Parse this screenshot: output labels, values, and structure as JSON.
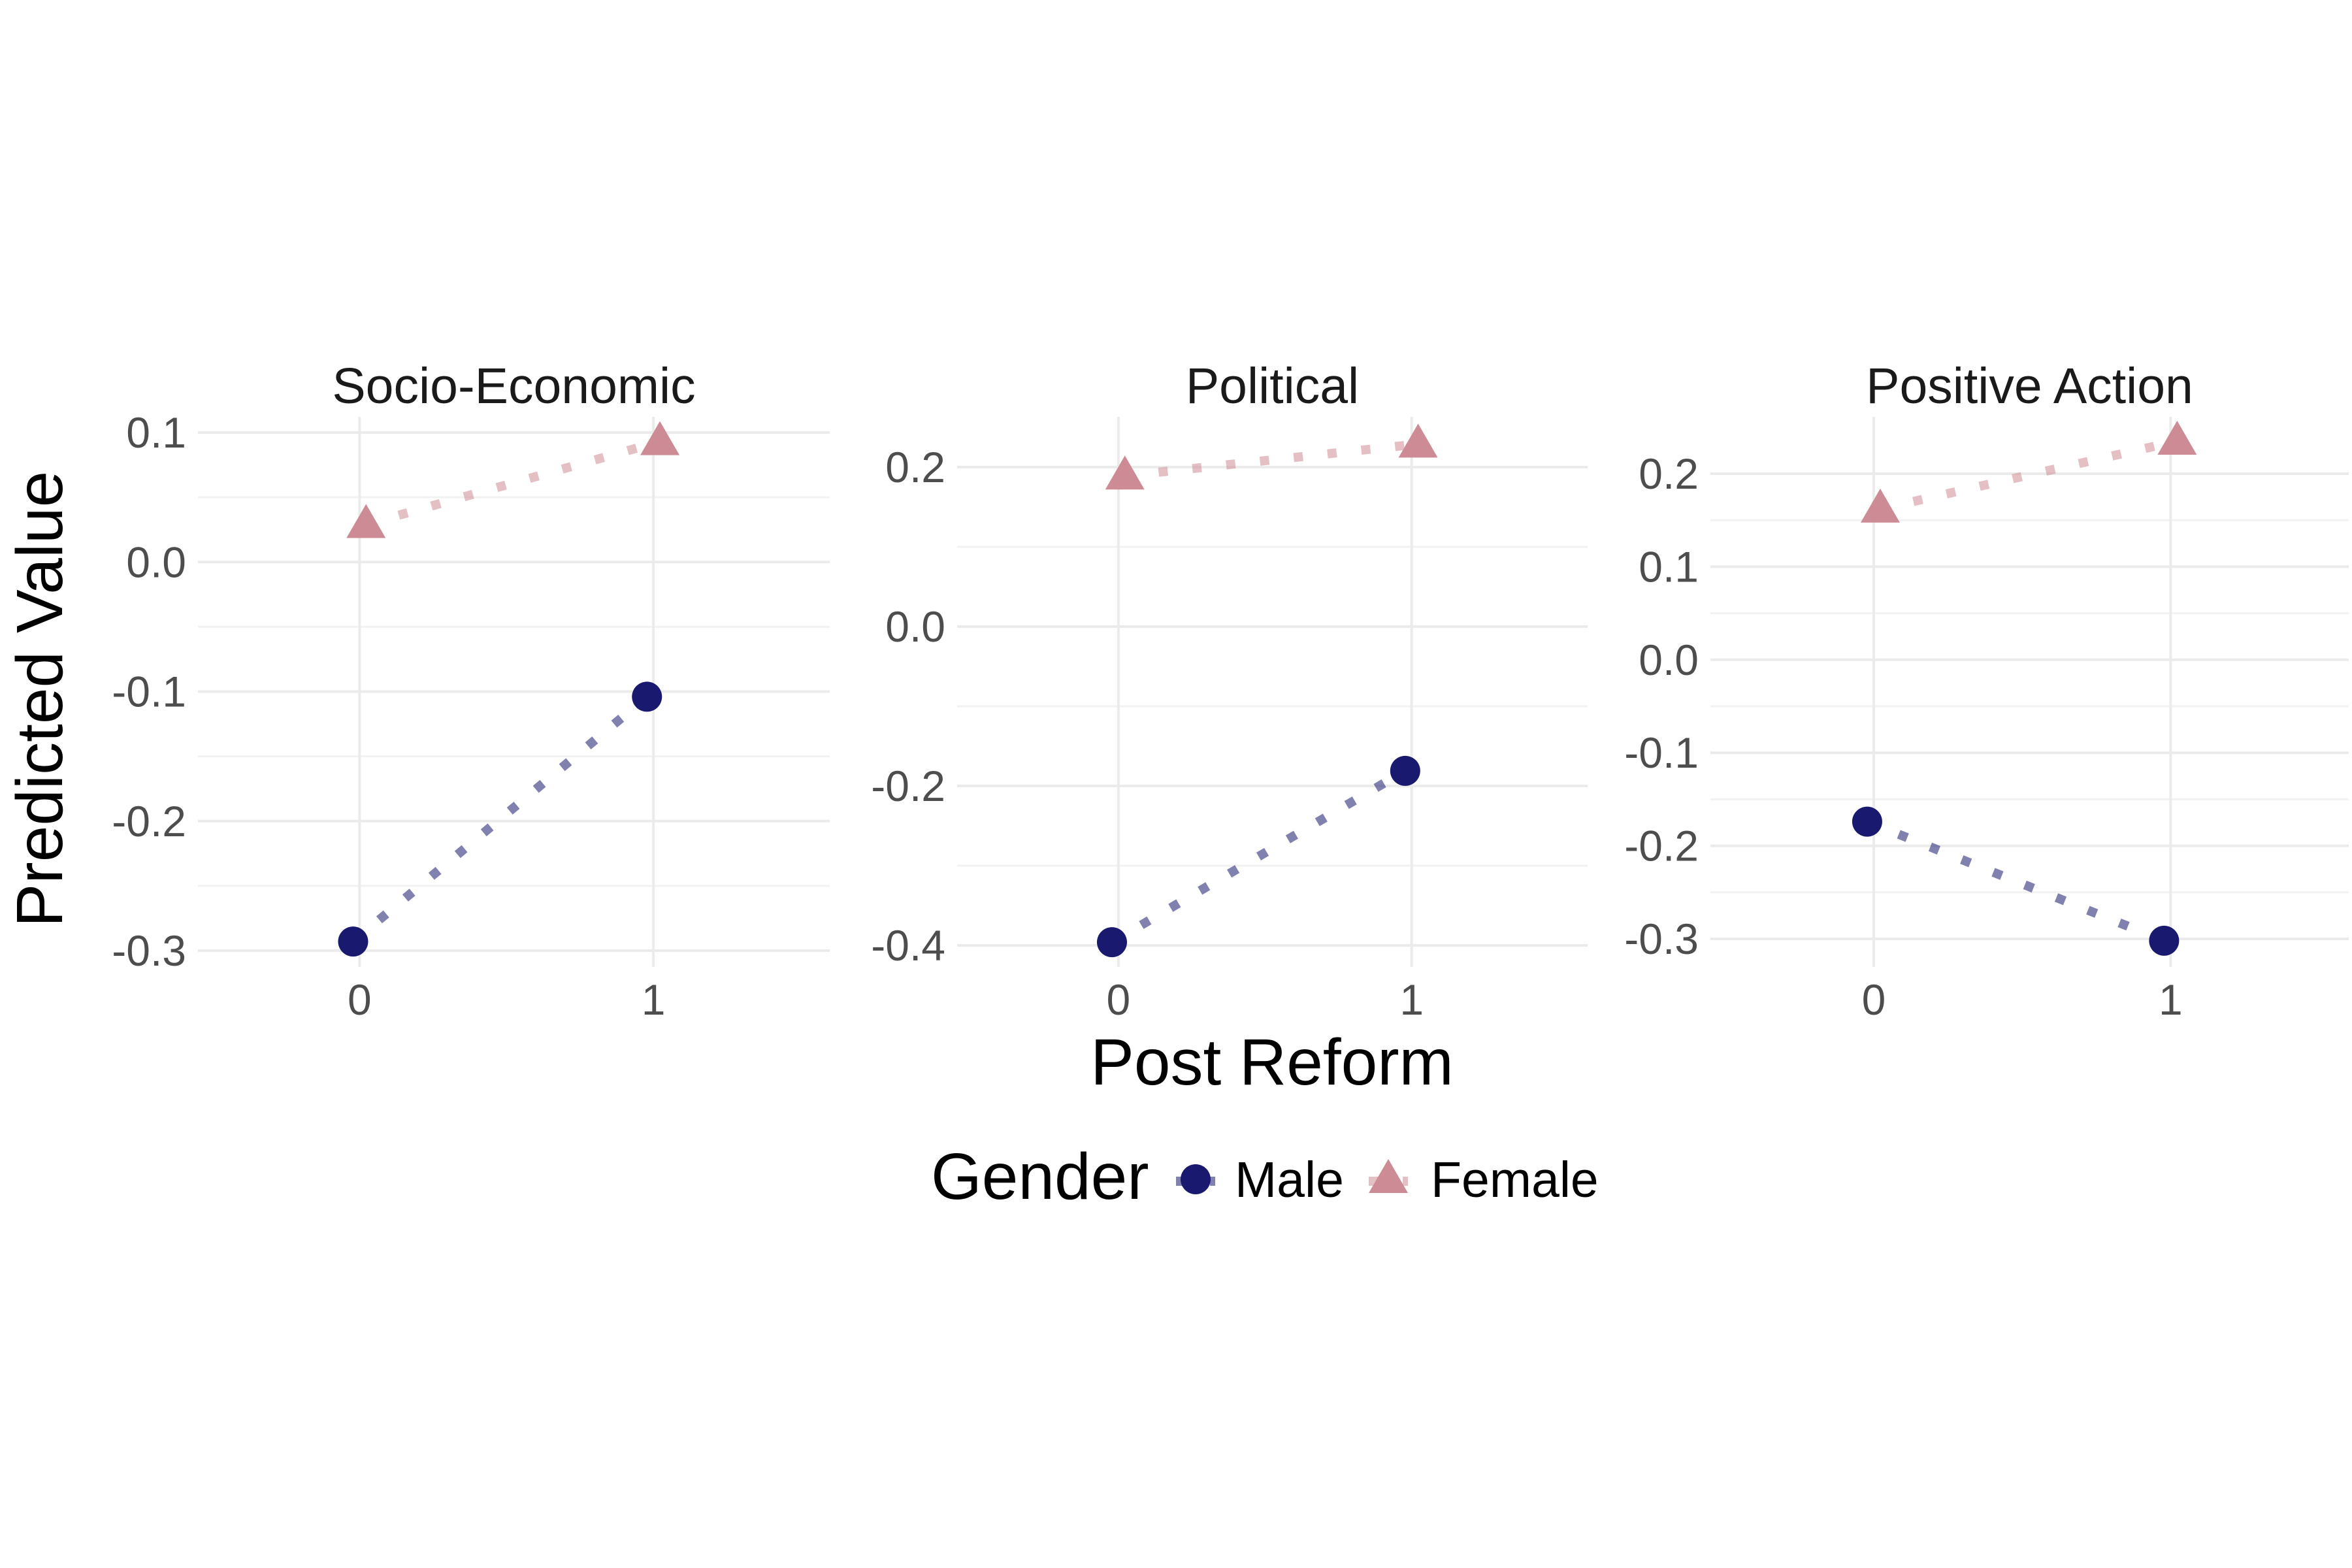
{
  "chart_data": {
    "type": "line",
    "xlabel": "Post Reform",
    "ylabel": "Predicted Value",
    "x_ticks": [
      "0",
      "1"
    ],
    "xlim": [
      -0.55,
      1.6
    ],
    "legend": {
      "title": "Gender",
      "placement": "bottom",
      "entries": [
        "Male",
        "Female"
      ]
    },
    "grid": true,
    "colors": {
      "Male": "#191970",
      "Female": "#CD8C95"
    },
    "panels": [
      {
        "title": "Socio-Economic",
        "ylim": [
          -0.3,
          0.1
        ],
        "y_ticks": [
          "-0.3",
          "-0.2",
          "-0.1",
          "0.0",
          "0.1"
        ],
        "series": [
          {
            "name": "Male",
            "x": [
              0,
              1
            ],
            "y": [
              -0.293,
              -0.104
            ]
          },
          {
            "name": "Female",
            "x": [
              0,
              1
            ],
            "y": [
              0.029,
              0.093
            ]
          }
        ]
      },
      {
        "title": "Political",
        "ylim": [
          -0.4,
          0.22
        ],
        "y_ticks": [
          "-0.4",
          "-0.2",
          "0.0",
          "0.2"
        ],
        "series": [
          {
            "name": "Male",
            "x": [
              0,
              1
            ],
            "y": [
              -0.396,
              -0.181
            ]
          },
          {
            "name": "Female",
            "x": [
              0,
              1
            ],
            "y": [
              0.189,
              0.229
            ]
          }
        ]
      },
      {
        "title": "Positive Action",
        "ylim": [
          -0.3,
          0.23
        ],
        "y_ticks": [
          "-0.3",
          "-0.2",
          "-0.1",
          "0.0",
          "0.1",
          "0.2"
        ],
        "series": [
          {
            "name": "Male",
            "x": [
              0,
              1
            ],
            "y": [
              -0.174,
              -0.302
            ]
          },
          {
            "name": "Female",
            "x": [
              0,
              1
            ],
            "y": [
              0.162,
              0.235
            ]
          }
        ]
      }
    ]
  }
}
